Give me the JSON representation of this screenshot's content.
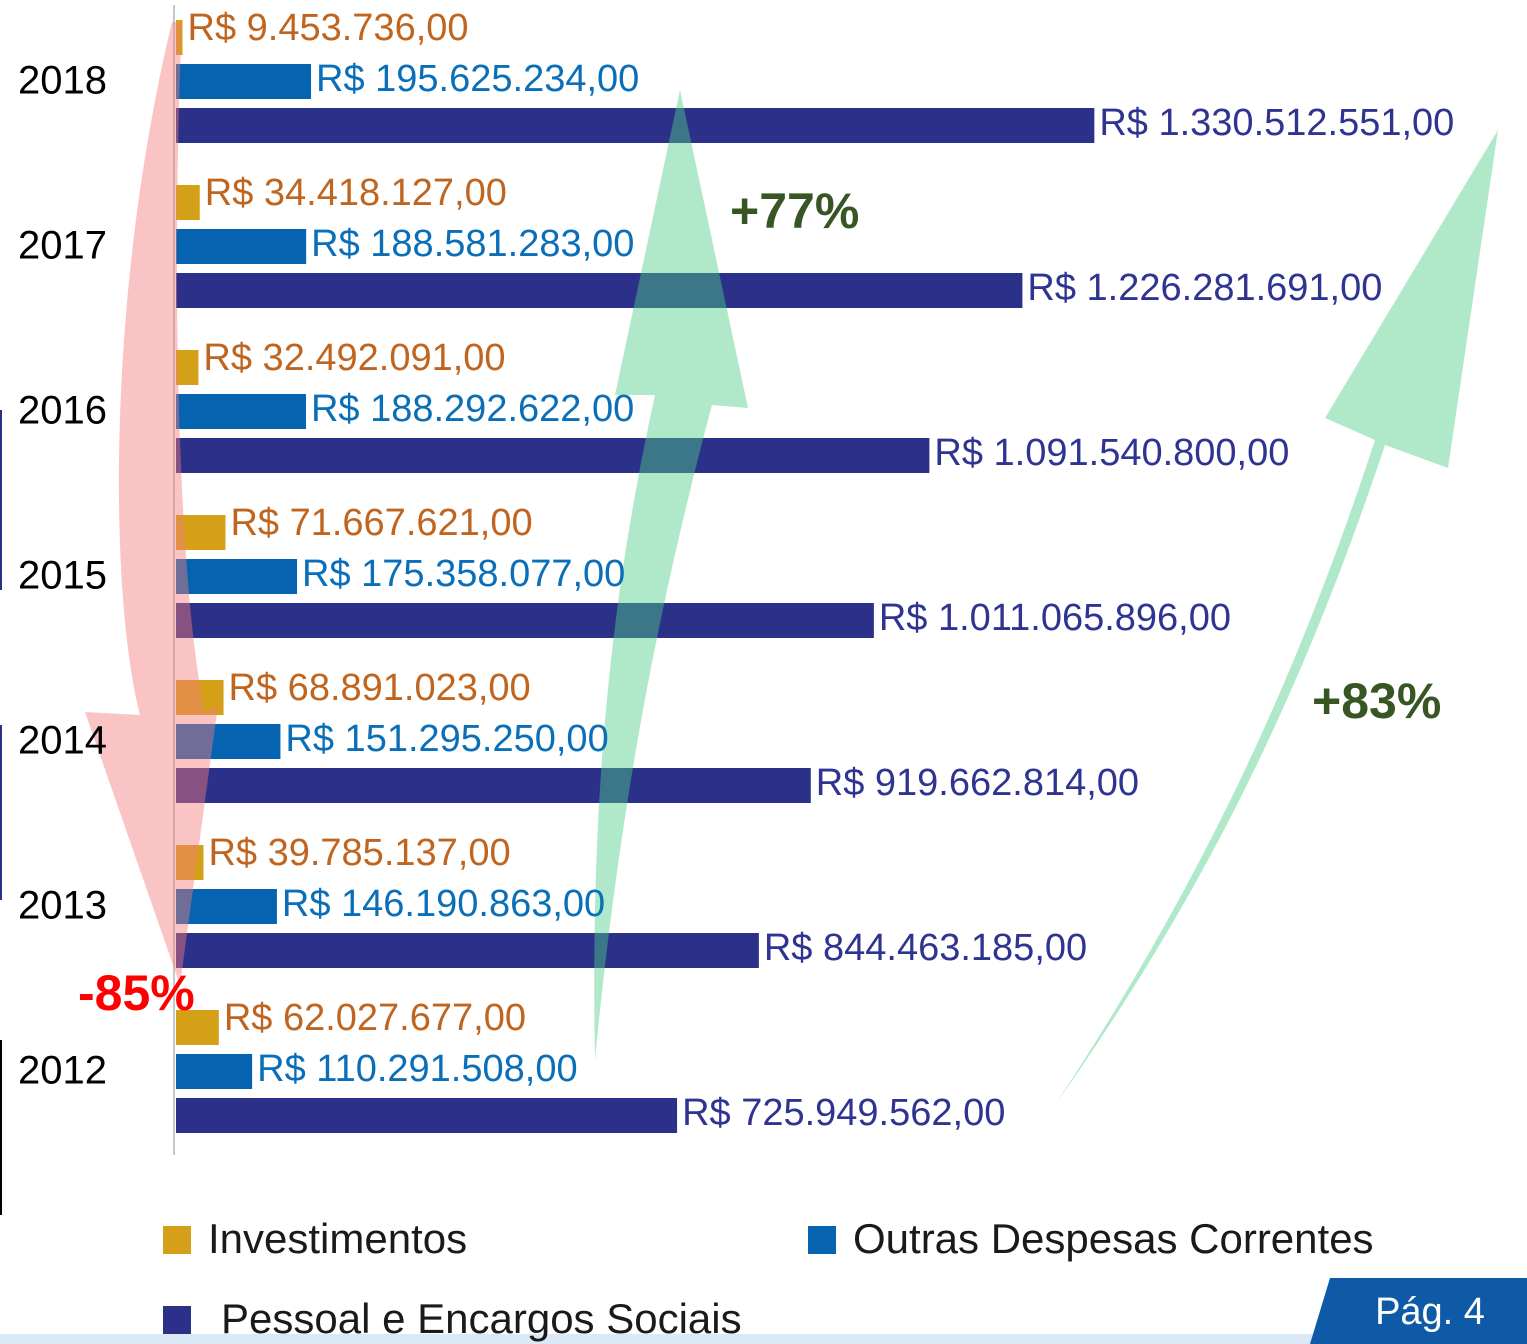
{
  "chart_data": {
    "type": "barh",
    "categories": [
      "2018",
      "2017",
      "2016",
      "2015",
      "2014",
      "2013",
      "2012"
    ],
    "series": [
      {
        "name": "Investimentos",
        "color": "#d4a017",
        "label_color": "#c0651f",
        "values": [
          9453736,
          34418127,
          32492091,
          71667621,
          68891023,
          39785137,
          62027677
        ],
        "value_labels": [
          "R$ 9.453.736,00",
          "R$ 34.418.127,00",
          "R$ 32.492.091,00",
          "R$ 71.667.621,00",
          "R$ 68.891.023,00",
          "R$ 39.785.137,00",
          "R$ 62.027.677,00"
        ]
      },
      {
        "name": "Outras Despesas Correntes",
        "color": "#0563b0",
        "label_color": "#0a6fb8",
        "values": [
          195625234,
          188581283,
          188292622,
          175358077,
          151295250,
          146190863,
          110291508
        ],
        "value_labels": [
          "R$ 195.625.234,00",
          "R$ 188.581.283,00",
          "R$ 188.292.622,00",
          "R$ 175.358.077,00",
          "R$ 151.295.250,00",
          "R$ 146.190.863,00",
          "R$ 110.291.508,00"
        ]
      },
      {
        "name": "Pessoal e Encargos Sociais",
        "color": "#2b3188",
        "label_color": "#2e3490",
        "values": [
          1330512551,
          1226281691,
          1091540800,
          1011065896,
          919662814,
          844463185,
          725949562
        ],
        "value_labels": [
          "R$ 1.330.512.551,00",
          "R$ 1.226.281.691,00",
          "R$ 1.091.540.800,00",
          "R$ 1.011.065.896,00",
          "R$ 919.662.814,00",
          "R$ 844.463.185,00",
          "R$ 725.949.562,00"
        ]
      }
    ],
    "annotations": [
      {
        "text": "+77%",
        "color": "#375623"
      },
      {
        "text": "+83%",
        "color": "#375623"
      },
      {
        "text": "-85%",
        "color": "#ff0000"
      }
    ]
  },
  "footer": {
    "page": "Pág. 4"
  }
}
